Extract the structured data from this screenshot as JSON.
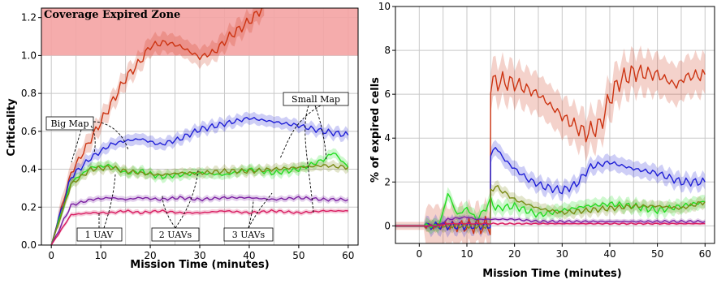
{
  "chart_data": [
    {
      "type": "line",
      "title": "",
      "xlabel": "Mission Time (minutes)",
      "ylabel": "Criticality",
      "xlim": [
        -2,
        62
      ],
      "ylim": [
        0,
        1.25
      ],
      "xticks": [
        0,
        10,
        20,
        30,
        40,
        50,
        60
      ],
      "yticks": [
        0.0,
        0.2,
        0.4,
        0.6,
        0.8,
        1.0,
        1.2
      ],
      "ytick_labels": [
        "0.0",
        "0.2",
        "0.4",
        "0.6",
        "0.8",
        "1.0",
        "1.2"
      ],
      "grid": true,
      "shaded_region": {
        "label": "Coverage Expired Zone",
        "y_from": 1.0,
        "y_to": 1.25,
        "color": "#f4a3a3"
      },
      "annotations": [
        "Big Map",
        "Small Map",
        "1 UAV",
        "2 UAVs",
        "3 UAVs"
      ],
      "series": [
        {
          "color": "#cc3311",
          "x": [
            0,
            4,
            8,
            12,
            15,
            18,
            20,
            23,
            26,
            30,
            33,
            36,
            40,
            43
          ],
          "values": [
            0.0,
            0.38,
            0.56,
            0.74,
            0.88,
            0.97,
            1.05,
            1.07,
            1.05,
            0.99,
            1.02,
            1.1,
            1.18,
            1.26
          ]
        },
        {
          "color": "#1f1fd6",
          "x": [
            0,
            4,
            8,
            12,
            15,
            18,
            22,
            26,
            30,
            35,
            40,
            45,
            50,
            55,
            60
          ],
          "values": [
            0.0,
            0.36,
            0.46,
            0.53,
            0.55,
            0.56,
            0.53,
            0.56,
            0.61,
            0.64,
            0.67,
            0.65,
            0.63,
            0.6,
            0.58
          ]
        },
        {
          "color": "#22dd22",
          "x": [
            0,
            4,
            8,
            12,
            15,
            18,
            22,
            26,
            30,
            35,
            40,
            45,
            50,
            55,
            57,
            60
          ],
          "values": [
            0.0,
            0.33,
            0.41,
            0.42,
            0.38,
            0.39,
            0.36,
            0.37,
            0.38,
            0.37,
            0.4,
            0.38,
            0.4,
            0.45,
            0.49,
            0.41
          ]
        },
        {
          "color": "#7a8a14",
          "x": [
            0,
            4,
            8,
            12,
            15,
            18,
            22,
            26,
            30,
            35,
            40,
            45,
            50,
            55,
            60
          ],
          "values": [
            0.0,
            0.32,
            0.4,
            0.41,
            0.39,
            0.38,
            0.37,
            0.38,
            0.38,
            0.39,
            0.39,
            0.4,
            0.41,
            0.42,
            0.41
          ]
        },
        {
          "color": "#7b1fa2",
          "x": [
            0,
            4,
            8,
            12,
            15,
            18,
            22,
            26,
            30,
            35,
            40,
            45,
            50,
            55,
            60
          ],
          "values": [
            0.0,
            0.21,
            0.24,
            0.25,
            0.24,
            0.25,
            0.24,
            0.25,
            0.24,
            0.25,
            0.25,
            0.24,
            0.25,
            0.24,
            0.24
          ]
        },
        {
          "color": "#d81b60",
          "x": [
            0,
            4,
            8,
            12,
            15,
            18,
            22,
            26,
            30,
            35,
            40,
            45,
            50,
            55,
            60
          ],
          "values": [
            0.0,
            0.16,
            0.17,
            0.17,
            0.18,
            0.17,
            0.18,
            0.17,
            0.17,
            0.18,
            0.17,
            0.18,
            0.17,
            0.18,
            0.18
          ]
        }
      ]
    },
    {
      "type": "line",
      "title": "",
      "xlabel": "Mission Time (minutes)",
      "ylabel": "% of expired cells",
      "xlim": [
        -5,
        62
      ],
      "ylim": [
        -0.8,
        10
      ],
      "xticks": [
        0,
        10,
        20,
        30,
        40,
        50,
        60
      ],
      "yticks": [
        0,
        2,
        4,
        6,
        8,
        10
      ],
      "grid": true,
      "series": [
        {
          "color": "#cc3311",
          "x": [
            -5,
            14.9,
            15,
            17,
            20,
            22,
            25,
            30,
            35,
            38,
            40,
            42,
            45,
            50,
            54,
            56,
            60
          ],
          "values": [
            0,
            0,
            6.5,
            6.6,
            6.5,
            6.3,
            6.0,
            5.0,
            4.2,
            4.6,
            5.8,
            6.6,
            7.0,
            6.9,
            6.4,
            6.8,
            6.9
          ]
        },
        {
          "color": "#1f1fd6",
          "x": [
            -5,
            14.9,
            15,
            16,
            18,
            20,
            23,
            26,
            30,
            33,
            36,
            40,
            45,
            50,
            55,
            60
          ],
          "values": [
            0,
            0,
            3.2,
            3.6,
            3.0,
            2.6,
            2.1,
            1.8,
            1.6,
            1.9,
            2.7,
            2.9,
            2.6,
            2.4,
            2.0,
            2.0
          ]
        },
        {
          "color": "#22dd22",
          "x": [
            -5,
            4,
            5,
            6,
            8,
            10,
            12,
            14,
            15,
            16,
            20,
            25,
            30,
            35,
            40,
            45,
            50,
            55,
            60
          ],
          "values": [
            0,
            0,
            0.6,
            1.5,
            0.5,
            0.8,
            0.3,
            0.8,
            1.2,
            0.8,
            0.9,
            0.5,
            0.7,
            0.9,
            1.0,
            0.9,
            0.7,
            0.9,
            1.1
          ]
        },
        {
          "color": "#7a8a14",
          "x": [
            -5,
            14.9,
            15,
            16,
            20,
            25,
            30,
            35,
            40,
            45,
            50,
            55,
            60
          ],
          "values": [
            0,
            0,
            1.6,
            1.8,
            1.2,
            0.8,
            0.6,
            0.7,
            0.8,
            0.9,
            0.9,
            0.8,
            1.1
          ]
        },
        {
          "color": "#7b1fa2",
          "x": [
            -5,
            4,
            6,
            10,
            12,
            15,
            20,
            25,
            30,
            35,
            40,
            45,
            50,
            55,
            60
          ],
          "values": [
            0,
            0,
            0.3,
            0.4,
            0.3,
            0.3,
            0.3,
            0.2,
            0.2,
            0.2,
            0.2,
            0.2,
            0.2,
            0.2,
            0.2
          ]
        },
        {
          "color": "#d81b60",
          "x": [
            -5,
            4,
            6,
            10,
            15,
            20,
            25,
            30,
            35,
            40,
            45,
            50,
            55,
            60
          ],
          "values": [
            0,
            0,
            0.1,
            0.1,
            0.1,
            0.1,
            0.1,
            0.1,
            0.1,
            0.1,
            0.1,
            0.1,
            0.1,
            0.1
          ]
        }
      ]
    }
  ]
}
